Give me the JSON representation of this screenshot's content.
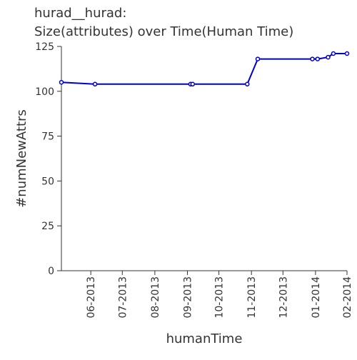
{
  "chart_data": {
    "type": "line",
    "title_line1": "hurad__hurad:",
    "title_line2": "Size(attributes) over Time(Human Time)",
    "xlabel": "humanTime",
    "ylabel": "#numNewAttrs",
    "ylim": [
      0,
      125
    ],
    "y_ticks": [
      0,
      25,
      50,
      75,
      100,
      125
    ],
    "x_range": [
      "2013-05-04",
      "2014-01-31"
    ],
    "x_tick_labels": [
      "06-2013",
      "07-2013",
      "08-2013",
      "09-2013",
      "10-2013",
      "11-2013",
      "12-2013",
      "01-2014",
      "02-2014"
    ],
    "x_tick_dates": [
      "2013-06-01",
      "2013-07-01",
      "2013-08-01",
      "2013-09-01",
      "2013-10-01",
      "2013-11-01",
      "2013-12-01",
      "2014-01-01",
      "2014-01-31"
    ],
    "grid": false,
    "line_color": "#0000cc",
    "series": [
      {
        "x": [
          "2013-05-04",
          "2013-06-05",
          "2013-09-04",
          "2013-09-06",
          "2013-10-28",
          "2013-11-07",
          "2013-12-29",
          "2014-01-03",
          "2014-01-13",
          "2014-01-18",
          "2014-01-31"
        ],
        "values": [
          105,
          104,
          104,
          104,
          104,
          118,
          118,
          118,
          119,
          121,
          121
        ]
      }
    ]
  }
}
